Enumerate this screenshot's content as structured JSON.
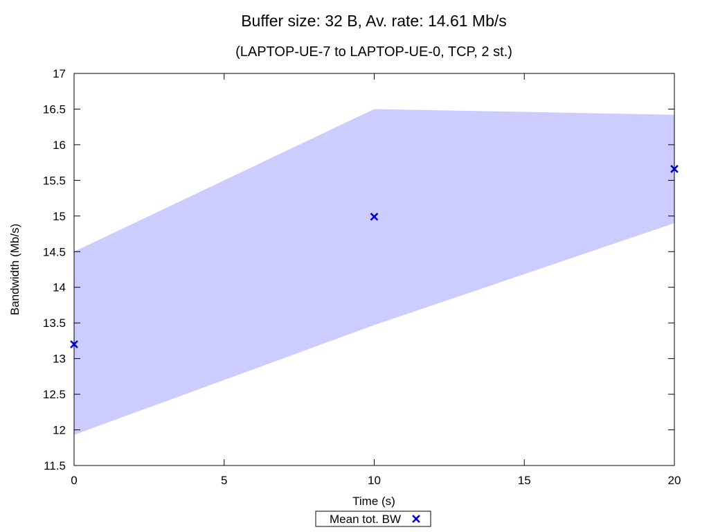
{
  "chart_data": {
    "type": "line",
    "title": "Buffer size: 32 B, Av. rate: 14.61 Mb/s",
    "subtitle": "(LAPTOP-UE-7 to LAPTOP-UE-0, TCP, 2 st.)",
    "xlabel": "Time (s)",
    "ylabel": "Bandwidth (Mb/s)",
    "xlim": [
      0,
      20
    ],
    "ylim": [
      11.5,
      17
    ],
    "x_ticks": [
      0,
      5,
      10,
      15,
      20
    ],
    "x_tick_labels": [
      "0",
      "5",
      "10",
      "15",
      "20"
    ],
    "y_ticks": [
      11.5,
      12,
      12.5,
      13,
      13.5,
      14,
      14.5,
      15,
      15.5,
      16,
      16.5,
      17
    ],
    "y_tick_labels": [
      "11.5",
      "12",
      "12.5",
      "13",
      "13.5",
      "14",
      "14.5",
      "15",
      "15.5",
      "16",
      "16.5",
      "17"
    ],
    "grid": false,
    "legend_position": "bottom-center",
    "band": {
      "x": [
        0,
        10,
        20
      ],
      "lower": [
        11.93,
        13.47,
        14.9
      ],
      "upper": [
        14.5,
        16.5,
        16.42
      ],
      "color": "#ccccff"
    },
    "series": [
      {
        "name": "Mean tot. BW",
        "marker": "x",
        "color": "#0000cc",
        "x": [
          0,
          10,
          20
        ],
        "y": [
          13.2,
          14.99,
          15.66
        ]
      }
    ]
  }
}
